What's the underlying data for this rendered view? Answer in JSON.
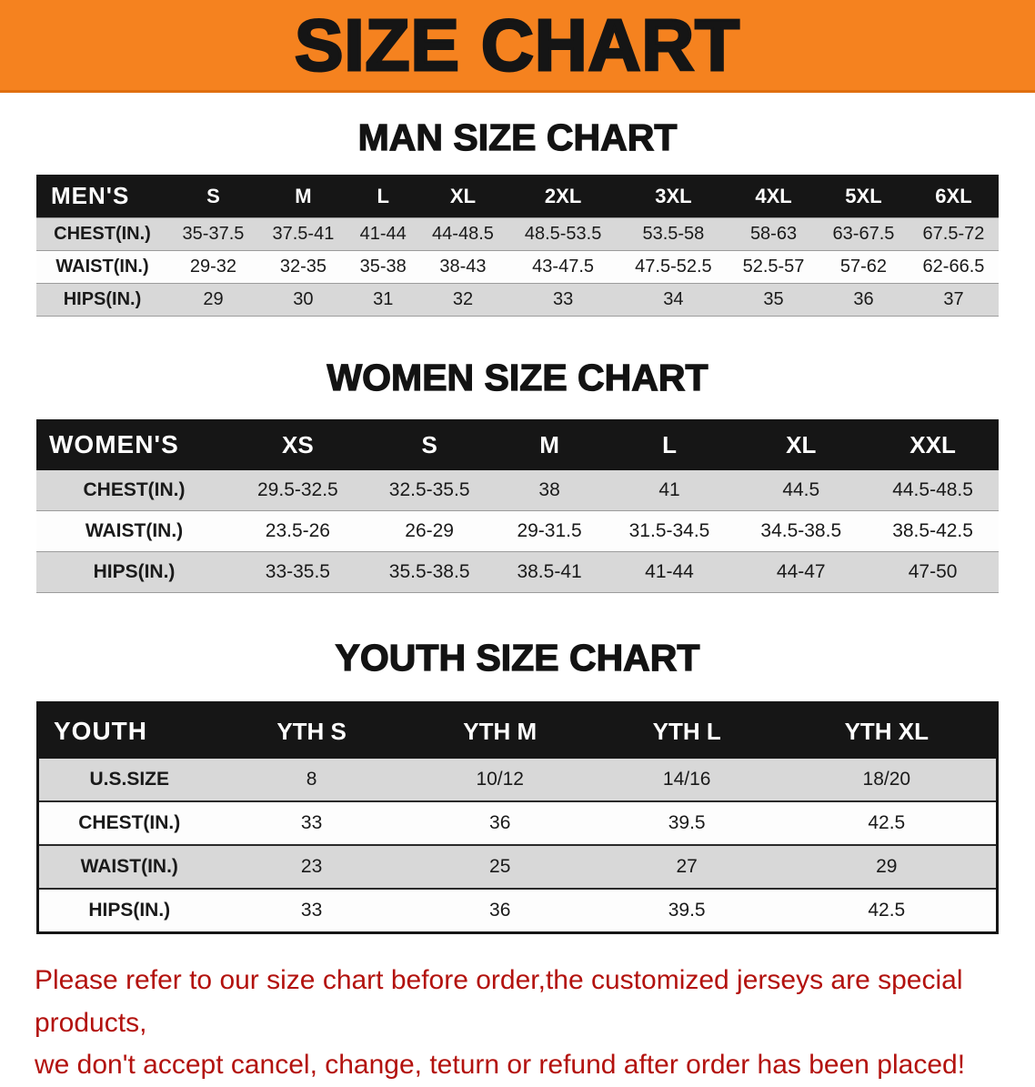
{
  "colors": {
    "banner-bg": "#f5821f",
    "header-bg": "#161616",
    "row-gray": "#d8d8d8",
    "disclaimer-red": "#b3120e"
  },
  "banner": {
    "title": "SIZE CHART"
  },
  "sections": {
    "men": {
      "heading": "MAN SIZE CHART",
      "table": {
        "header": [
          "MEN'S",
          "S",
          "M",
          "L",
          "XL",
          "2XL",
          "3XL",
          "4XL",
          "5XL",
          "6XL"
        ],
        "rows": [
          [
            "CHEST(IN.)",
            "35-37.5",
            "37.5-41",
            "41-44",
            "44-48.5",
            "48.5-53.5",
            "53.5-58",
            "58-63",
            "63-67.5",
            "67.5-72"
          ],
          [
            "WAIST(IN.)",
            "29-32",
            "32-35",
            "35-38",
            "38-43",
            "43-47.5",
            "47.5-52.5",
            "52.5-57",
            "57-62",
            "62-66.5"
          ],
          [
            "HIPS(IN.)",
            "29",
            "30",
            "31",
            "32",
            "33",
            "34",
            "35",
            "36",
            "37"
          ]
        ]
      }
    },
    "women": {
      "heading": "WOMEN SIZE CHART",
      "table": {
        "header": [
          "WOMEN'S",
          "XS",
          "S",
          "M",
          "L",
          "XL",
          "XXL"
        ],
        "rows": [
          [
            "CHEST(IN.)",
            "29.5-32.5",
            "32.5-35.5",
            "38",
            "41",
            "44.5",
            "44.5-48.5"
          ],
          [
            "WAIST(IN.)",
            "23.5-26",
            "26-29",
            "29-31.5",
            "31.5-34.5",
            "34.5-38.5",
            "38.5-42.5"
          ],
          [
            "HIPS(IN.)",
            "33-35.5",
            "35.5-38.5",
            "38.5-41",
            "41-44",
            "44-47",
            "47-50"
          ]
        ]
      }
    },
    "youth": {
      "heading": "YOUTH SIZE CHART",
      "table": {
        "header": [
          "YOUTH",
          "YTH S",
          "YTH M",
          "YTH L",
          "YTH XL"
        ],
        "rows": [
          [
            "U.S.SIZE",
            "8",
            "10/12",
            "14/16",
            "18/20"
          ],
          [
            "CHEST(IN.)",
            "33",
            "36",
            "39.5",
            "42.5"
          ],
          [
            "WAIST(IN.)",
            "23",
            "25",
            "27",
            "29"
          ],
          [
            "HIPS(IN.)",
            "33",
            "36",
            "39.5",
            "42.5"
          ]
        ]
      }
    }
  },
  "disclaimer": {
    "line1": "Please refer to our size chart before order,the customized jerseys are special products,",
    "line2": "we don't accept cancel, change, teturn or refund after order has been placed!"
  }
}
